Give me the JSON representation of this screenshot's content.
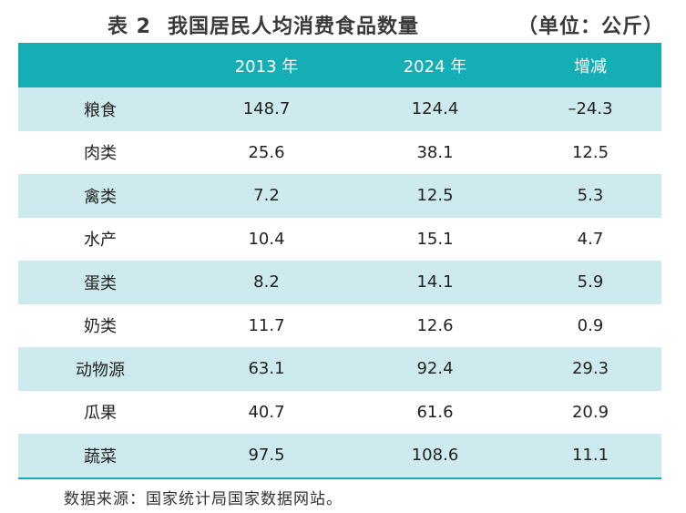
{
  "title": {
    "number": "表 2",
    "text": "我国居民人均消费食品数量",
    "unit": "（单位：公斤）"
  },
  "table": {
    "headers": [
      "",
      "2013 年",
      "2024 年",
      "增减"
    ],
    "rows": [
      [
        "粮食",
        "148.7",
        "124.4",
        "–24.3"
      ],
      [
        "肉类",
        "25.6",
        "38.1",
        "12.5"
      ],
      [
        "禽类",
        "7.2",
        "12.5",
        "5.3"
      ],
      [
        "水产",
        "10.4",
        "15.1",
        "4.7"
      ],
      [
        "蛋类",
        "8.2",
        "14.1",
        "5.9"
      ],
      [
        "奶类",
        "11.7",
        "12.6",
        "0.9"
      ],
      [
        "动物源",
        "63.1",
        "92.4",
        "29.3"
      ],
      [
        "瓜果",
        "40.7",
        "61.6",
        "20.9"
      ],
      [
        "蔬菜",
        "97.5",
        "108.6",
        "11.1"
      ]
    ]
  },
  "source": "数据来源：国家统计局国家数据网站。",
  "colors": {
    "header_bg": "#14aeb4",
    "stripe_bg": "#cdeaee"
  }
}
